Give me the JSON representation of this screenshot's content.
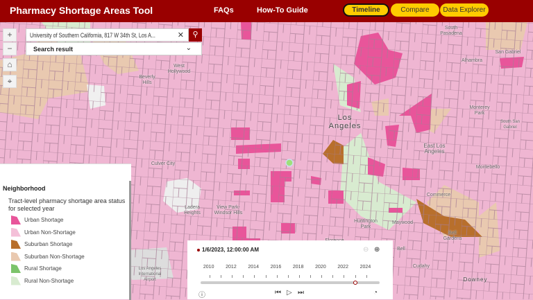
{
  "header": {
    "title": "Pharmacy Shortage Areas Tool",
    "nav": [
      "FAQs",
      "How-To Guide"
    ],
    "tabs": [
      {
        "label": "Timeline",
        "active": true
      },
      {
        "label": "Compare",
        "active": false
      },
      {
        "label": "Data Explorer",
        "active": false
      }
    ],
    "brand_color": "#990000",
    "tab_color": "#FFCC00"
  },
  "search": {
    "value": "University of Southern California, 817 W 34th St, Los A...",
    "clear_icon": "close-icon",
    "search_icon": "search-icon",
    "result_label": "Search result"
  },
  "map_controls": {
    "zoom_in": "+",
    "zoom_out": "−",
    "home": "⌂",
    "locate": "⌖"
  },
  "map_labels": {
    "west_hollywood": "West Hollywood",
    "beverly_hills": "Beverly Hills",
    "los_angeles": "Los Angeles",
    "culver_city": "Culver City",
    "ladera_heights": "Ladera Heights",
    "view_park": "View Park-Windsor Hills",
    "huntington_park": "Huntington Park",
    "florence": "Florence",
    "maywood": "Maywood",
    "bell": "Bell",
    "bell_gardens": "Bell Gardens",
    "cudahy": "Cudahy",
    "downey": "Downey",
    "commerce": "Commerce",
    "montebello": "Montebello",
    "east_los_angeles": "East Los Angeles",
    "monterey_park": "Monterey Park",
    "south_san_gabriel": "South San Gabriel",
    "alhambra": "Alhambra",
    "san_gabriel": "San Gabriel",
    "south_pasadena": "South Pasadena",
    "lax": "Los Angeles International Airport"
  },
  "legend": {
    "title": "Neighborhood",
    "subtitle": "Tract-level pharmacy shortage area status for selected year",
    "items": [
      {
        "label": "Urban Shortage",
        "color": "#e8559a"
      },
      {
        "label": "Urban Non-Shortage",
        "color": "#f4c0d8"
      },
      {
        "label": "Suburban Shortage",
        "color": "#b86f2c"
      },
      {
        "label": "Suburban Non-Shortage",
        "color": "#e9c9b0"
      },
      {
        "label": "Rural Shortage",
        "color": "#7cc46a"
      },
      {
        "label": "Rural Non-Shortage",
        "color": "#d8ebd0"
      }
    ]
  },
  "timeline": {
    "current": "1/6/2023, 12:00:00 AM",
    "years": [
      "2010",
      "2012",
      "2014",
      "2016",
      "2018",
      "2020",
      "2022",
      "2024"
    ],
    "position_year": 2023.0
  }
}
